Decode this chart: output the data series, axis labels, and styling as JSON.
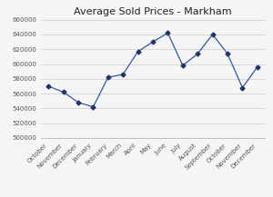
{
  "title": "Average Sold Prices - Markham",
  "categories": [
    "October",
    "November",
    "December",
    "January",
    "February",
    "March",
    "April",
    "May",
    "June",
    "July",
    "August",
    "September",
    "October",
    "November",
    "December"
  ],
  "values": [
    570000,
    562000,
    548000,
    542000,
    582000,
    586000,
    617000,
    630000,
    642000,
    598000,
    614000,
    640000,
    614000,
    568000,
    596000
  ],
  "line_color": "#3355AA",
  "marker": "D",
  "marker_size": 2.5,
  "marker_color": "#223366",
  "ylim": [
    500000,
    660000
  ],
  "yticks": [
    500000,
    520000,
    540000,
    560000,
    580000,
    600000,
    620000,
    640000,
    660000
  ],
  "background_color": "#f5f5f5",
  "grid_color": "#cccccc",
  "title_fontsize": 8,
  "tick_fontsize": 5,
  "label_color": "#555555"
}
